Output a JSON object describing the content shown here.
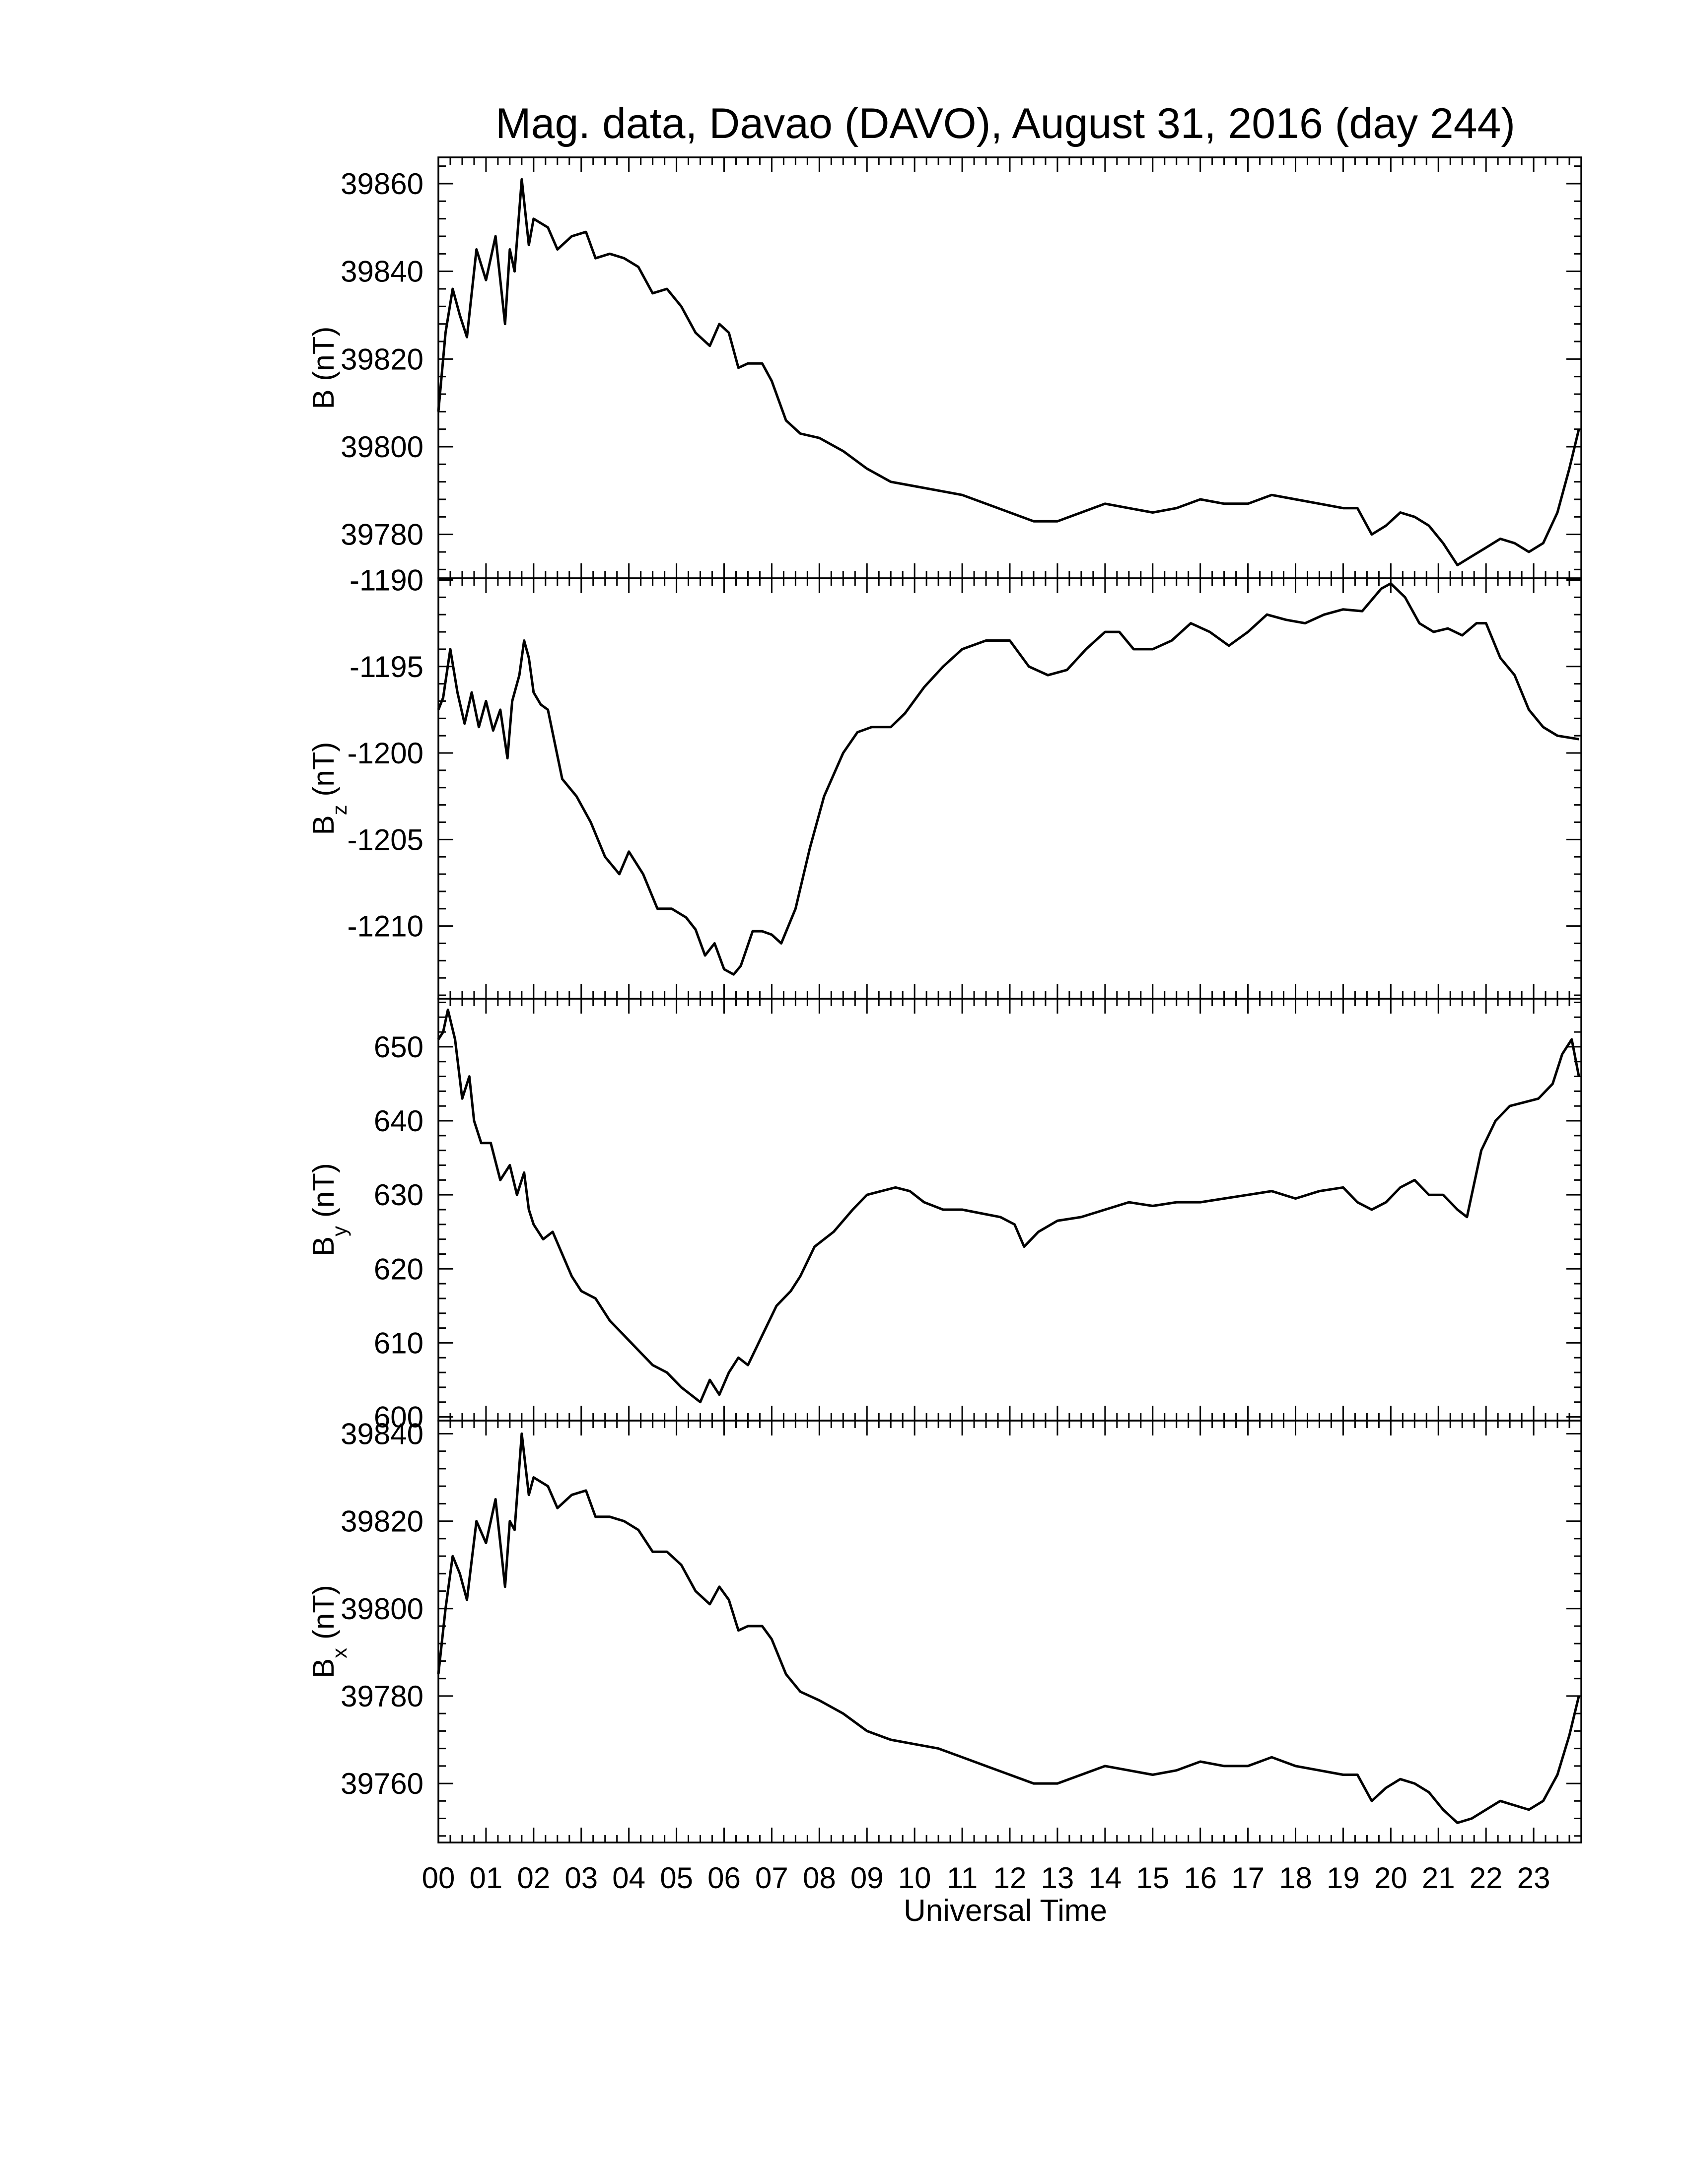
{
  "figure": {
    "title": "Mag. data, Davao (DAVO), August 31, 2016 (day 244)",
    "xlabel": "Universal Time",
    "line_color": "#000000",
    "background": "#ffffff"
  },
  "chart_data": [
    {
      "type": "line",
      "name": "B",
      "ylabel": {
        "main": "B",
        "sub": "",
        "unit": "(nT)"
      },
      "ylim": [
        39770,
        39866
      ],
      "yticks": [
        39780,
        39800,
        39820,
        39840,
        39860
      ],
      "ytick_labels": [
        "39780",
        "39800",
        "39820",
        "39840",
        "39860"
      ],
      "xlim": [
        0,
        24
      ],
      "x": [
        0.0,
        0.15,
        0.3,
        0.45,
        0.6,
        0.8,
        1.0,
        1.2,
        1.4,
        1.5,
        1.6,
        1.75,
        1.9,
        2.0,
        2.3,
        2.5,
        2.8,
        3.1,
        3.3,
        3.6,
        3.9,
        4.2,
        4.5,
        4.8,
        5.1,
        5.4,
        5.7,
        5.9,
        6.1,
        6.3,
        6.5,
        6.8,
        7.0,
        7.3,
        7.6,
        8.0,
        8.5,
        9.0,
        9.5,
        10.0,
        10.5,
        11.0,
        11.5,
        12.0,
        12.5,
        13.0,
        13.5,
        14.0,
        14.5,
        15.0,
        15.5,
        16.0,
        16.5,
        17.0,
        17.5,
        18.0,
        18.5,
        19.0,
        19.3,
        19.6,
        19.9,
        20.2,
        20.5,
        20.8,
        21.1,
        21.4,
        21.7,
        22.0,
        22.3,
        22.6,
        22.9,
        23.2,
        23.5,
        23.75,
        23.95
      ],
      "values": [
        39808,
        39826,
        39836,
        39830,
        39825,
        39845,
        39838,
        39848,
        39828,
        39845,
        39840,
        39861,
        39846,
        39852,
        39850,
        39845,
        39848,
        39849,
        39843,
        39844,
        39843,
        39841,
        39835,
        39836,
        39832,
        39826,
        39823,
        39828,
        39826,
        39818,
        39819,
        39819,
        39815,
        39806,
        39803,
        39802,
        39799,
        39795,
        39792,
        39791,
        39790,
        39789,
        39787,
        39785,
        39783,
        39783,
        39785,
        39787,
        39786,
        39785,
        39786,
        39788,
        39787,
        39787,
        39789,
        39788,
        39787,
        39786,
        39786,
        39780,
        39782,
        39785,
        39784,
        39782,
        39778,
        39773,
        39775,
        39777,
        39779,
        39778,
        39776,
        39778,
        39785,
        39795,
        39804
      ]
    },
    {
      "type": "line",
      "name": "Bz",
      "ylabel": {
        "main": "B",
        "sub": "z",
        "unit": "(nT)"
      },
      "ylim": [
        -1214.2,
        -1189.9
      ],
      "yticks": [
        -1210,
        -1205,
        -1200,
        -1195,
        -1190
      ],
      "ytick_labels": [
        "-1210",
        "-1205",
        "-1200",
        "-1195",
        "-1190"
      ],
      "xlim": [
        0,
        24
      ],
      "x": [
        0.0,
        0.1,
        0.25,
        0.4,
        0.55,
        0.7,
        0.85,
        1.0,
        1.15,
        1.3,
        1.45,
        1.55,
        1.7,
        1.8,
        1.9,
        2.0,
        2.15,
        2.3,
        2.45,
        2.6,
        2.9,
        3.2,
        3.5,
        3.8,
        4.0,
        4.3,
        4.6,
        4.9,
        5.2,
        5.4,
        5.6,
        5.8,
        6.0,
        6.2,
        6.35,
        6.6,
        6.8,
        7.0,
        7.2,
        7.5,
        7.8,
        8.1,
        8.5,
        8.8,
        9.1,
        9.5,
        9.8,
        10.2,
        10.6,
        11.0,
        11.5,
        12.0,
        12.4,
        12.8,
        13.2,
        13.6,
        14.0,
        14.3,
        14.6,
        15.0,
        15.4,
        15.8,
        16.2,
        16.6,
        17.0,
        17.4,
        17.8,
        18.2,
        18.6,
        19.0,
        19.4,
        19.8,
        20.0,
        20.3,
        20.6,
        20.9,
        21.2,
        21.5,
        21.8,
        22.0,
        22.3,
        22.6,
        22.9,
        23.2,
        23.5,
        23.95
      ],
      "values": [
        -1197.5,
        -1196.8,
        -1194.0,
        -1196.5,
        -1198.3,
        -1196.5,
        -1198.5,
        -1197.0,
        -1198.7,
        -1197.5,
        -1200.3,
        -1197.0,
        -1195.5,
        -1193.5,
        -1194.5,
        -1196.5,
        -1197.2,
        -1197.5,
        -1199.5,
        -1201.5,
        -1202.5,
        -1204.0,
        -1206.0,
        -1207.0,
        -1205.7,
        -1207.0,
        -1209.0,
        -1209.0,
        -1209.5,
        -1210.2,
        -1211.7,
        -1211.0,
        -1212.5,
        -1212.8,
        -1212.3,
        -1210.3,
        -1210.3,
        -1210.5,
        -1211.0,
        -1209.0,
        -1205.5,
        -1202.5,
        -1200.0,
        -1198.8,
        -1198.5,
        -1198.5,
        -1197.7,
        -1196.2,
        -1195.0,
        -1194.0,
        -1193.5,
        -1193.5,
        -1195.0,
        -1195.5,
        -1195.2,
        -1194.0,
        -1193.0,
        -1193.0,
        -1194.0,
        -1194.0,
        -1193.5,
        -1192.5,
        -1193.0,
        -1193.8,
        -1193.0,
        -1192.0,
        -1192.3,
        -1192.5,
        -1192.0,
        -1191.7,
        -1191.8,
        -1190.5,
        -1190.2,
        -1191.0,
        -1192.5,
        -1193.0,
        -1192.8,
        -1193.2,
        -1192.5,
        -1192.5,
        -1194.5,
        -1195.5,
        -1197.5,
        -1198.5,
        -1199.0,
        -1199.2
      ]
    },
    {
      "type": "line",
      "name": "By",
      "ylabel": {
        "main": "B",
        "sub": "y",
        "unit": "(nT)"
      },
      "ylim": [
        599.5,
        656.5
      ],
      "yticks": [
        600,
        610,
        620,
        630,
        640,
        650
      ],
      "ytick_labels": [
        "600",
        "610",
        "620",
        "630",
        "640",
        "650"
      ],
      "xlim": [
        0,
        24
      ],
      "x": [
        0.0,
        0.1,
        0.2,
        0.35,
        0.5,
        0.65,
        0.75,
        0.9,
        1.1,
        1.3,
        1.5,
        1.65,
        1.8,
        1.9,
        2.0,
        2.2,
        2.4,
        2.6,
        2.8,
        3.0,
        3.3,
        3.6,
        3.9,
        4.2,
        4.5,
        4.8,
        5.1,
        5.3,
        5.5,
        5.7,
        5.9,
        6.1,
        6.3,
        6.5,
        6.8,
        7.1,
        7.4,
        7.6,
        7.9,
        8.3,
        8.7,
        9.0,
        9.3,
        9.6,
        9.9,
        10.2,
        10.6,
        11.0,
        11.4,
        11.8,
        12.1,
        12.3,
        12.6,
        13.0,
        13.5,
        14.0,
        14.5,
        15.0,
        15.5,
        16.0,
        16.5,
        17.0,
        17.5,
        18.0,
        18.5,
        19.0,
        19.3,
        19.6,
        19.9,
        20.2,
        20.5,
        20.8,
        21.1,
        21.4,
        21.6,
        21.9,
        22.2,
        22.5,
        22.8,
        23.1,
        23.4,
        23.6,
        23.8,
        23.95
      ],
      "values": [
        651,
        652,
        655,
        651,
        643,
        646,
        640,
        637,
        637,
        632,
        634,
        630,
        633,
        628,
        626,
        624,
        625,
        622,
        619,
        617,
        616,
        613,
        611,
        609,
        607,
        606,
        604,
        603,
        602,
        605,
        603,
        606,
        608,
        607,
        611,
        615,
        617,
        619,
        623,
        625,
        628,
        630,
        630.5,
        631,
        630.5,
        629,
        628,
        628,
        627.5,
        627,
        626,
        623,
        625,
        626.5,
        627,
        628,
        629,
        628.5,
        629,
        629,
        629.5,
        630,
        630.5,
        629.5,
        630.5,
        631,
        629,
        628,
        629,
        631,
        632,
        630,
        630,
        628,
        627,
        636,
        640,
        642,
        642.5,
        643,
        645,
        649,
        651,
        646
      ]
    },
    {
      "type": "line",
      "name": "Bx",
      "ylabel": {
        "main": "B",
        "sub": "x",
        "unit": "(nT)"
      },
      "ylim": [
        39746.5,
        39843
      ],
      "yticks": [
        39760,
        39780,
        39800,
        39820,
        39840
      ],
      "ytick_labels": [
        "39760",
        "39780",
        "39800",
        "39820",
        "39840"
      ],
      "xlim": [
        0,
        24
      ],
      "x": [
        0.0,
        0.15,
        0.3,
        0.45,
        0.6,
        0.8,
        1.0,
        1.2,
        1.4,
        1.5,
        1.6,
        1.75,
        1.9,
        2.0,
        2.3,
        2.5,
        2.8,
        3.1,
        3.3,
        3.6,
        3.9,
        4.2,
        4.5,
        4.8,
        5.1,
        5.4,
        5.7,
        5.9,
        6.1,
        6.3,
        6.5,
        6.8,
        7.0,
        7.3,
        7.6,
        8.0,
        8.5,
        9.0,
        9.5,
        10.0,
        10.5,
        11.0,
        11.5,
        12.0,
        12.5,
        13.0,
        13.5,
        14.0,
        14.5,
        15.0,
        15.5,
        16.0,
        16.5,
        17.0,
        17.5,
        18.0,
        18.5,
        19.0,
        19.3,
        19.6,
        19.9,
        20.2,
        20.5,
        20.8,
        21.1,
        21.4,
        21.7,
        22.0,
        22.3,
        22.6,
        22.9,
        23.2,
        23.5,
        23.75,
        23.95
      ],
      "values": [
        39785,
        39800,
        39812,
        39808,
        39802,
        39820,
        39815,
        39825,
        39805,
        39820,
        39818,
        39840,
        39826,
        39830,
        39828,
        39823,
        39826,
        39827,
        39821,
        39821,
        39820,
        39818,
        39813,
        39813,
        39810,
        39804,
        39801,
        39805,
        39802,
        39795,
        39796,
        39796,
        39793,
        39785,
        39781,
        39779,
        39776,
        39772,
        39770,
        39769,
        39768,
        39766,
        39764,
        39762,
        39760,
        39760,
        39762,
        39764,
        39763,
        39762,
        39763,
        39765,
        39764,
        39764,
        39766,
        39764,
        39763,
        39762,
        39762,
        39756,
        39759,
        39761,
        39760,
        39758,
        39754,
        39751,
        39752,
        39754,
        39756,
        39755,
        39754,
        39756,
        39762,
        39771,
        39780
      ]
    }
  ],
  "x_axis": {
    "tick_labels": [
      "00",
      "01",
      "02",
      "03",
      "04",
      "05",
      "06",
      "07",
      "08",
      "09",
      "10",
      "11",
      "12",
      "13",
      "14",
      "15",
      "16",
      "17",
      "18",
      "19",
      "20",
      "21",
      "22",
      "23"
    ],
    "major_step_hours": 1,
    "minor_per_major": 4
  }
}
